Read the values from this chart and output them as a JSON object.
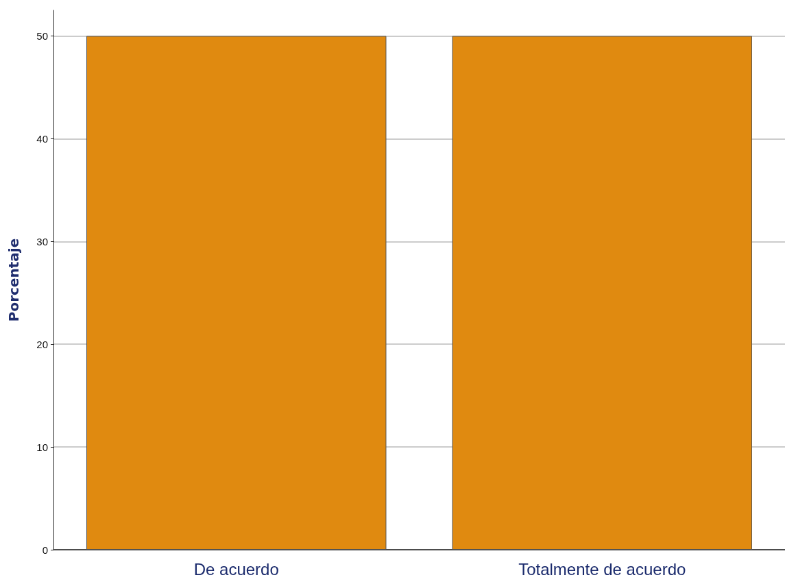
{
  "chart_data": {
    "type": "bar",
    "ylabel": "Porcentaje",
    "categories": [
      "De acuerdo",
      "Totalmente de acuerdo"
    ],
    "values": [
      50,
      50
    ],
    "color": "#e08a10",
    "ylim": [
      0,
      52.5
    ],
    "yticks": [
      0,
      10,
      20,
      30,
      40,
      50
    ],
    "grid": "y"
  }
}
